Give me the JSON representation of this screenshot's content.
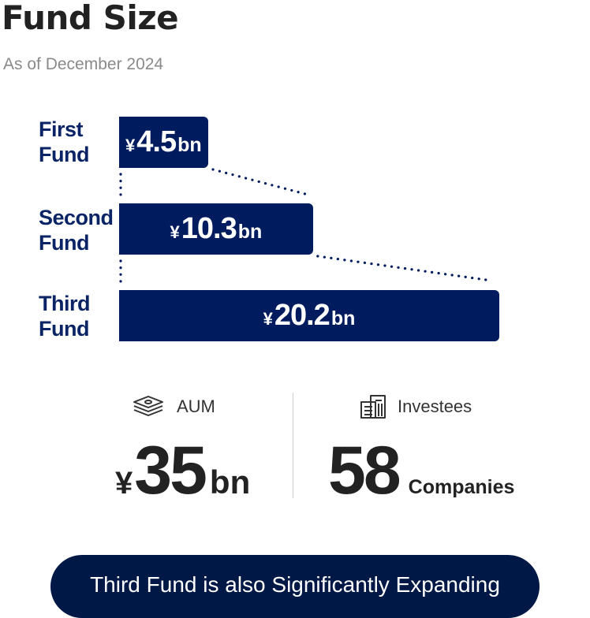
{
  "header": {
    "title": "Fund Size",
    "subtitle": "As of December 2024"
  },
  "chart_data": {
    "type": "bar",
    "orientation": "horizontal",
    "categories": [
      "First Fund",
      "Second Fund",
      "Third Fund"
    ],
    "category_lines": [
      [
        "First",
        "Fund"
      ],
      [
        "Second",
        "Fund"
      ],
      [
        "Third",
        "Fund"
      ]
    ],
    "values": [
      4.5,
      10.3,
      20.2
    ],
    "value_labels": [
      {
        "currency": "¥",
        "number": "4.5",
        "unit": "bn"
      },
      {
        "currency": "¥",
        "number": "10.3",
        "unit": "bn"
      },
      {
        "currency": "¥",
        "number": "20.2",
        "unit": "bn"
      }
    ],
    "bar_color": "#001b5e",
    "connectors": "dotted"
  },
  "stats": {
    "aum": {
      "label": "AUM",
      "currency": "¥",
      "value": "35",
      "unit": "bn",
      "icon": "money-stack-icon"
    },
    "investees": {
      "label": "Investees",
      "value": "58",
      "unit": "Companies",
      "icon": "buildings-icon"
    }
  },
  "cta": {
    "label": "Third Fund is also Significantly Expanding"
  },
  "colors": {
    "navy": "#001b5e",
    "cta_bg": "#001845",
    "label": "#0b2466"
  }
}
